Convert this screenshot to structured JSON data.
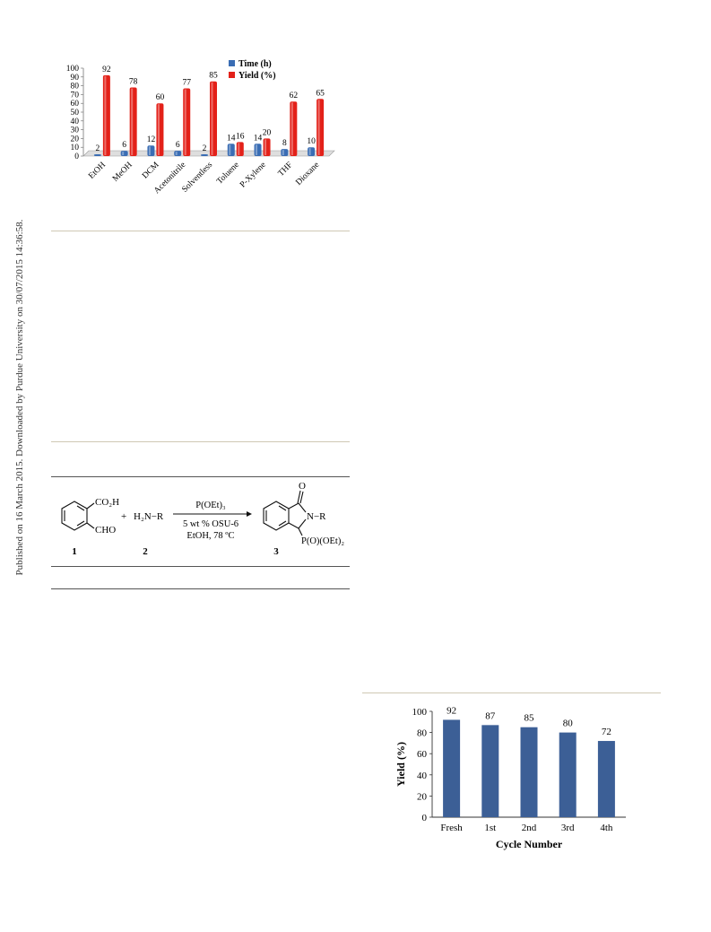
{
  "side_note": "Published on 16 March 2015. Downloaded by Purdue University on 30/07/2015 14:36:58.",
  "solvent_chart": {
    "type": "bar",
    "categories": [
      "EtOH",
      "MeOH",
      "DCM",
      "Acetonitrile",
      "Solventless",
      "Toluene",
      "P-Xylene",
      "THF",
      "Dioxane"
    ],
    "series": [
      {
        "name": "Time (h)",
        "values": [
          2,
          6,
          12,
          6,
          2,
          14,
          14,
          8,
          10
        ],
        "color": "#3a6db4"
      },
      {
        "name": "Yield (%)",
        "values": [
          92,
          78,
          60,
          77,
          85,
          16,
          20,
          62,
          65
        ],
        "color": "#e32119"
      }
    ],
    "ylim": [
      0,
      100
    ],
    "yticks": [
      0,
      10,
      20,
      30,
      40,
      50,
      60,
      70,
      80,
      90,
      100
    ],
    "legend": "top-right"
  },
  "scheme": {
    "reactant1_sub1": "CO₂H",
    "reactant1_sub2": "CHO",
    "plus": "+",
    "amine": "H₂N−R",
    "reagent": "P(OEt)₃",
    "catalyst": "5 wt % OSU-6",
    "conditions": "EtOH, 78 ºC",
    "product_o": "O",
    "product_n": "N−R",
    "product_p": "P(O)(OEt)₂",
    "label1": "1",
    "label2": "2",
    "label3": "3"
  },
  "cycle_chart": {
    "type": "bar",
    "categories": [
      "Fresh",
      "1st",
      "2nd",
      "3rd",
      "4th"
    ],
    "values": [
      92,
      87,
      85,
      80,
      72
    ],
    "ylim": [
      0,
      100
    ],
    "yticks": [
      0,
      20,
      40,
      60,
      80,
      100
    ],
    "xlabel": "Cycle Number",
    "ylabel": "Yield (%)",
    "color": "#3c5f96"
  }
}
